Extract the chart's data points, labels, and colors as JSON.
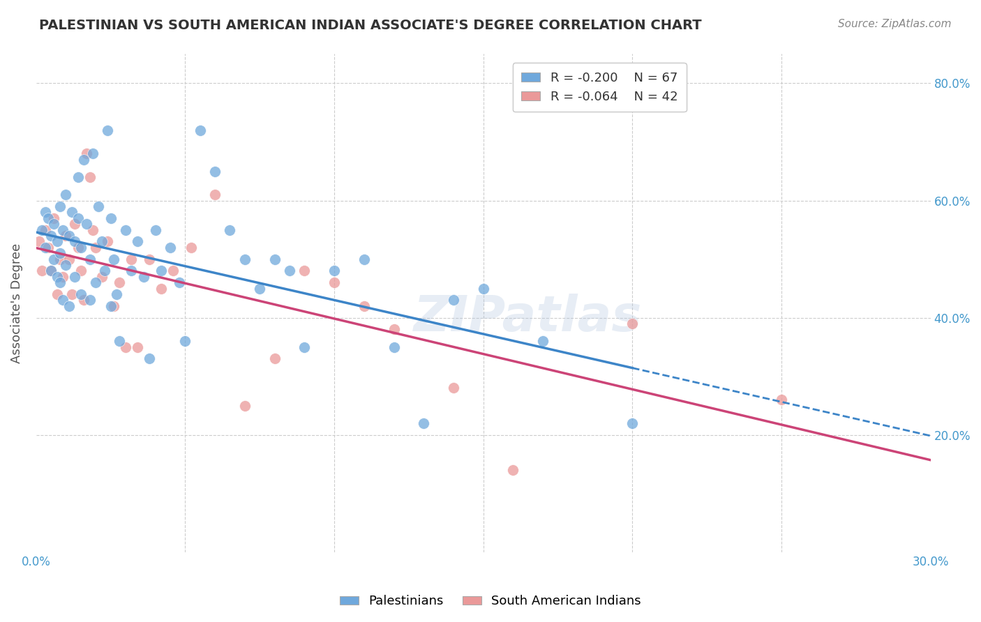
{
  "title": "PALESTINIAN VS SOUTH AMERICAN INDIAN ASSOCIATE'S DEGREE CORRELATION CHART",
  "source": "Source: ZipAtlas.com",
  "ylabel": "Associate's Degree",
  "xlim": [
    0.0,
    0.3
  ],
  "ylim": [
    0.0,
    0.85
  ],
  "legend_r1": "R = -0.200",
  "legend_n1": "N = 67",
  "legend_r2": "R = -0.064",
  "legend_n2": "N = 42",
  "blue_color": "#6fa8dc",
  "pink_color": "#ea9999",
  "blue_line_color": "#3d85c8",
  "pink_line_color": "#cc4477",
  "grid_color": "#cccccc",
  "background_color": "#ffffff",
  "watermark": "ZIPatlas",
  "palestinians_x": [
    0.002,
    0.003,
    0.003,
    0.004,
    0.005,
    0.005,
    0.006,
    0.006,
    0.007,
    0.007,
    0.008,
    0.008,
    0.008,
    0.009,
    0.009,
    0.01,
    0.01,
    0.011,
    0.011,
    0.012,
    0.013,
    0.013,
    0.014,
    0.014,
    0.015,
    0.015,
    0.016,
    0.017,
    0.018,
    0.018,
    0.019,
    0.02,
    0.021,
    0.022,
    0.023,
    0.024,
    0.025,
    0.025,
    0.026,
    0.027,
    0.028,
    0.03,
    0.032,
    0.034,
    0.036,
    0.038,
    0.04,
    0.042,
    0.045,
    0.048,
    0.05,
    0.055,
    0.06,
    0.065,
    0.07,
    0.075,
    0.08,
    0.085,
    0.09,
    0.1,
    0.11,
    0.12,
    0.13,
    0.14,
    0.15,
    0.17,
    0.2
  ],
  "palestinians_y": [
    0.55,
    0.58,
    0.52,
    0.57,
    0.54,
    0.48,
    0.56,
    0.5,
    0.53,
    0.47,
    0.59,
    0.51,
    0.46,
    0.55,
    0.43,
    0.61,
    0.49,
    0.54,
    0.42,
    0.58,
    0.53,
    0.47,
    0.64,
    0.57,
    0.52,
    0.44,
    0.67,
    0.56,
    0.5,
    0.43,
    0.68,
    0.46,
    0.59,
    0.53,
    0.48,
    0.72,
    0.57,
    0.42,
    0.5,
    0.44,
    0.36,
    0.55,
    0.48,
    0.53,
    0.47,
    0.33,
    0.55,
    0.48,
    0.52,
    0.46,
    0.36,
    0.72,
    0.65,
    0.55,
    0.5,
    0.45,
    0.5,
    0.48,
    0.35,
    0.48,
    0.5,
    0.35,
    0.22,
    0.43,
    0.45,
    0.36,
    0.22
  ],
  "south_american_x": [
    0.001,
    0.002,
    0.003,
    0.004,
    0.005,
    0.006,
    0.007,
    0.008,
    0.009,
    0.01,
    0.011,
    0.012,
    0.013,
    0.014,
    0.015,
    0.016,
    0.017,
    0.018,
    0.019,
    0.02,
    0.022,
    0.024,
    0.026,
    0.028,
    0.03,
    0.032,
    0.034,
    0.038,
    0.042,
    0.046,
    0.052,
    0.06,
    0.07,
    0.08,
    0.09,
    0.1,
    0.11,
    0.12,
    0.14,
    0.16,
    0.2,
    0.25
  ],
  "south_american_y": [
    0.53,
    0.48,
    0.55,
    0.52,
    0.48,
    0.57,
    0.44,
    0.5,
    0.47,
    0.54,
    0.5,
    0.44,
    0.56,
    0.52,
    0.48,
    0.43,
    0.68,
    0.64,
    0.55,
    0.52,
    0.47,
    0.53,
    0.42,
    0.46,
    0.35,
    0.5,
    0.35,
    0.5,
    0.45,
    0.48,
    0.52,
    0.61,
    0.25,
    0.33,
    0.48,
    0.46,
    0.42,
    0.38,
    0.28,
    0.14,
    0.39,
    0.26
  ]
}
